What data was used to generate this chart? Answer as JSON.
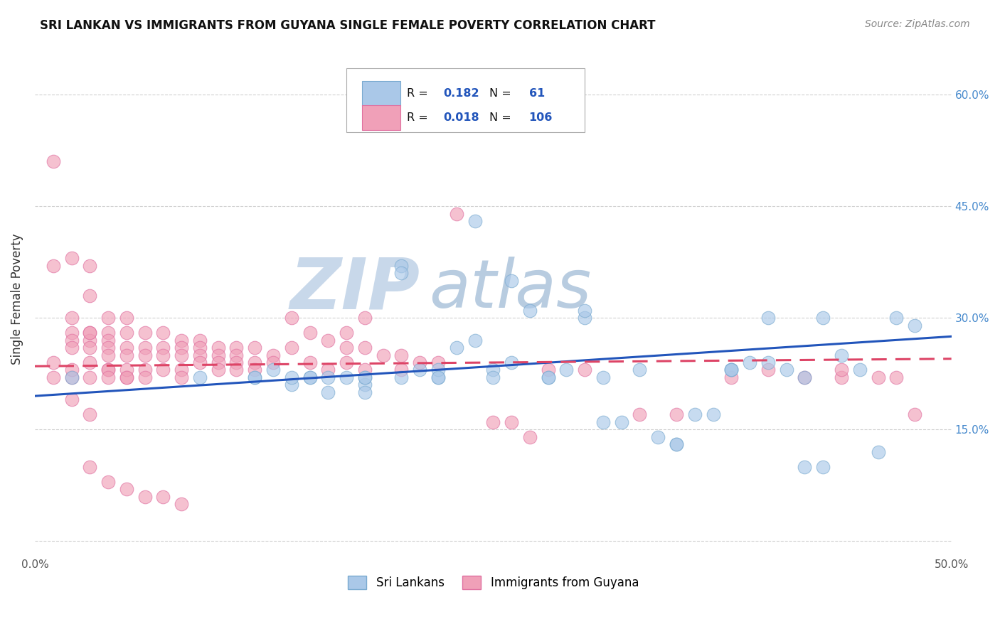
{
  "title": "SRI LANKAN VS IMMIGRANTS FROM GUYANA SINGLE FEMALE POVERTY CORRELATION CHART",
  "source": "Source: ZipAtlas.com",
  "ylabel": "Single Female Poverty",
  "yticks": [
    0.0,
    0.15,
    0.3,
    0.45,
    0.6
  ],
  "ytick_labels": [
    "",
    "15.0%",
    "30.0%",
    "45.0%",
    "60.0%"
  ],
  "xlim": [
    0.0,
    0.5
  ],
  "ylim": [
    -0.02,
    0.67
  ],
  "series1_name": "Sri Lankans",
  "series2_name": "Immigrants from Guyana",
  "series1_color": "#aac8e8",
  "series2_color": "#f0a0b8",
  "series1_edge": "#7aaad0",
  "series2_edge": "#e070a0",
  "trend1_color": "#2255bb",
  "trend2_color": "#dd4466",
  "watermark_zip": "ZIP",
  "watermark_atlas": "atlas",
  "watermark_color_zip": "#c8d8ea",
  "watermark_color_atlas": "#b8cce0",
  "background_color": "#ffffff",
  "title_fontsize": 12,
  "source_fontsize": 10,
  "legend_r1": "0.182",
  "legend_n1": "61",
  "legend_r2": "0.018",
  "legend_n2": "106",
  "series1_x": [
    0.02,
    0.09,
    0.12,
    0.14,
    0.15,
    0.16,
    0.17,
    0.18,
    0.18,
    0.2,
    0.21,
    0.22,
    0.23,
    0.24,
    0.25,
    0.26,
    0.27,
    0.28,
    0.29,
    0.3,
    0.31,
    0.32,
    0.33,
    0.34,
    0.35,
    0.36,
    0.37,
    0.38,
    0.39,
    0.4,
    0.41,
    0.42,
    0.43,
    0.44,
    0.45,
    0.46,
    0.47,
    0.48,
    0.3,
    0.31,
    0.35,
    0.38,
    0.4,
    0.43,
    0.25,
    0.22,
    0.2,
    0.18,
    0.15,
    0.13,
    0.38,
    0.42,
    0.28,
    0.26,
    0.24,
    0.22,
    0.2,
    0.18,
    0.16,
    0.14,
    0.12
  ],
  "series1_y": [
    0.22,
    0.22,
    0.22,
    0.21,
    0.22,
    0.2,
    0.22,
    0.21,
    0.2,
    0.37,
    0.23,
    0.22,
    0.26,
    0.27,
    0.23,
    0.24,
    0.31,
    0.22,
    0.23,
    0.3,
    0.22,
    0.16,
    0.23,
    0.14,
    0.13,
    0.17,
    0.17,
    0.23,
    0.24,
    0.24,
    0.23,
    0.1,
    0.1,
    0.25,
    0.23,
    0.12,
    0.3,
    0.29,
    0.31,
    0.16,
    0.13,
    0.23,
    0.3,
    0.3,
    0.22,
    0.23,
    0.36,
    0.22,
    0.22,
    0.23,
    0.23,
    0.22,
    0.22,
    0.35,
    0.43,
    0.22,
    0.22,
    0.22,
    0.22,
    0.22,
    0.22
  ],
  "series2_x": [
    0.01,
    0.01,
    0.01,
    0.02,
    0.02,
    0.02,
    0.02,
    0.02,
    0.02,
    0.03,
    0.03,
    0.03,
    0.03,
    0.03,
    0.03,
    0.03,
    0.04,
    0.04,
    0.04,
    0.04,
    0.04,
    0.04,
    0.04,
    0.05,
    0.05,
    0.05,
    0.05,
    0.05,
    0.05,
    0.06,
    0.06,
    0.06,
    0.06,
    0.06,
    0.07,
    0.07,
    0.07,
    0.07,
    0.08,
    0.08,
    0.08,
    0.08,
    0.08,
    0.09,
    0.09,
    0.09,
    0.09,
    0.1,
    0.1,
    0.1,
    0.1,
    0.11,
    0.11,
    0.11,
    0.11,
    0.12,
    0.12,
    0.12,
    0.13,
    0.13,
    0.14,
    0.14,
    0.15,
    0.15,
    0.16,
    0.16,
    0.17,
    0.17,
    0.17,
    0.18,
    0.18,
    0.18,
    0.19,
    0.2,
    0.2,
    0.21,
    0.22,
    0.23,
    0.25,
    0.26,
    0.27,
    0.28,
    0.3,
    0.33,
    0.35,
    0.38,
    0.4,
    0.42,
    0.44,
    0.44,
    0.46,
    0.47,
    0.48,
    0.02,
    0.03,
    0.04,
    0.05,
    0.01,
    0.02,
    0.03,
    0.03,
    0.04,
    0.05,
    0.06,
    0.07,
    0.08
  ],
  "series2_y": [
    0.24,
    0.37,
    0.51,
    0.22,
    0.38,
    0.28,
    0.27,
    0.26,
    0.23,
    0.22,
    0.37,
    0.33,
    0.28,
    0.27,
    0.26,
    0.24,
    0.3,
    0.28,
    0.27,
    0.26,
    0.23,
    0.23,
    0.22,
    0.3,
    0.28,
    0.26,
    0.25,
    0.22,
    0.23,
    0.28,
    0.26,
    0.25,
    0.23,
    0.22,
    0.28,
    0.26,
    0.25,
    0.23,
    0.27,
    0.26,
    0.25,
    0.23,
    0.22,
    0.27,
    0.26,
    0.25,
    0.24,
    0.26,
    0.25,
    0.24,
    0.23,
    0.26,
    0.25,
    0.24,
    0.23,
    0.26,
    0.24,
    0.23,
    0.25,
    0.24,
    0.3,
    0.26,
    0.28,
    0.24,
    0.27,
    0.23,
    0.28,
    0.26,
    0.24,
    0.3,
    0.26,
    0.23,
    0.25,
    0.25,
    0.23,
    0.24,
    0.24,
    0.44,
    0.16,
    0.16,
    0.14,
    0.23,
    0.23,
    0.17,
    0.17,
    0.22,
    0.23,
    0.22,
    0.22,
    0.23,
    0.22,
    0.22,
    0.17,
    0.3,
    0.28,
    0.25,
    0.22,
    0.22,
    0.19,
    0.17,
    0.1,
    0.08,
    0.07,
    0.06,
    0.06,
    0.05
  ],
  "trend1_x": [
    0.0,
    0.5
  ],
  "trend1_y": [
    0.195,
    0.275
  ],
  "trend2_x": [
    0.0,
    0.5
  ],
  "trend2_y": [
    0.235,
    0.245
  ]
}
